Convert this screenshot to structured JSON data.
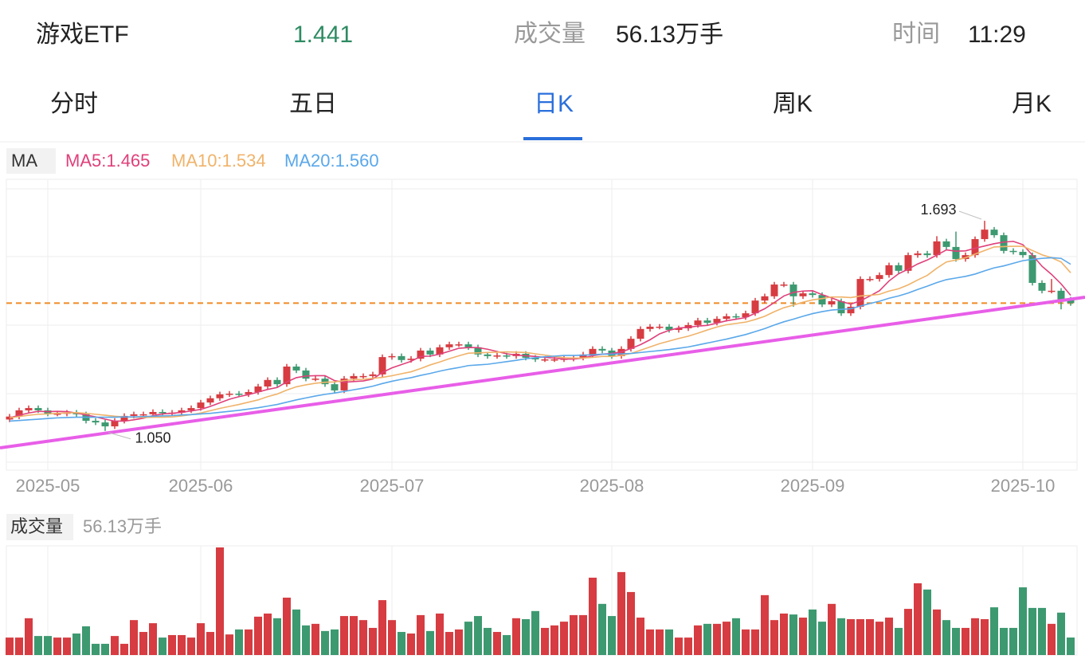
{
  "header": {
    "name": "游戏ETF",
    "price": 1.441,
    "volume_label": "成交量",
    "volume": "56.13万手",
    "time_label": "时间",
    "time": "11:29"
  },
  "tabs": {
    "items": [
      "分时",
      "五日",
      "日K",
      "周K",
      "月K"
    ],
    "active": 2
  },
  "chart_data": {
    "type": "candlestick",
    "ma_title": "MA",
    "volume_title": "成交量",
    "volume_label": "56.13万手",
    "up_color": "#d63c41",
    "down_color": "#3d9970",
    "ylim": [
      0.93,
      1.82
    ],
    "volume_ylim": [
      0,
      350
    ],
    "xticks": [
      {
        "value": 4,
        "label": "2025-05"
      },
      {
        "value": 20,
        "label": "2025-06"
      },
      {
        "value": 40,
        "label": "2025-07"
      },
      {
        "value": 63,
        "label": "2025-08"
      },
      {
        "value": 84,
        "label": "2025-09"
      },
      {
        "value": 106,
        "label": "2025-10"
      }
    ],
    "annotations": {
      "max": "1.693",
      "min": "1.050"
    },
    "open": [
      1.085,
      1.094,
      1.113,
      1.12,
      1.113,
      1.103,
      1.103,
      1.106,
      1.101,
      1.081,
      1.076,
      1.064,
      1.081,
      1.096,
      1.101,
      1.101,
      1.108,
      1.106,
      1.106,
      1.113,
      1.12,
      1.137,
      1.15,
      1.162,
      1.164,
      1.162,
      1.169,
      1.186,
      1.206,
      1.193,
      1.247,
      1.235,
      1.21,
      1.21,
      1.193,
      1.174,
      1.21,
      1.218,
      1.218,
      1.223,
      1.276,
      1.279,
      1.267,
      1.271,
      1.296,
      1.284,
      1.306,
      1.315,
      1.315,
      1.306,
      1.284,
      1.279,
      1.281,
      1.279,
      1.286,
      1.274,
      1.269,
      1.269,
      1.269,
      1.271,
      1.274,
      1.284,
      1.301,
      1.296,
      1.279,
      1.301,
      1.332,
      1.362,
      1.369,
      1.369,
      1.359,
      1.364,
      1.374,
      1.388,
      1.381,
      1.393,
      1.401,
      1.398,
      1.41,
      1.449,
      1.462,
      1.498,
      1.498,
      1.462,
      1.471,
      1.466,
      1.437,
      1.447,
      1.41,
      1.43,
      1.515,
      1.515,
      1.527,
      1.557,
      1.54,
      1.588,
      1.593,
      1.588,
      1.63,
      1.613,
      1.576,
      1.588,
      1.637,
      1.666,
      1.649,
      1.601,
      1.598,
      1.588,
      1.503,
      1.479,
      1.479,
      1.452
    ],
    "close": [
      1.094,
      1.113,
      1.12,
      1.113,
      1.103,
      1.103,
      1.106,
      1.101,
      1.081,
      1.076,
      1.064,
      1.081,
      1.096,
      1.101,
      1.101,
      1.108,
      1.106,
      1.106,
      1.113,
      1.12,
      1.137,
      1.15,
      1.162,
      1.164,
      1.162,
      1.169,
      1.186,
      1.206,
      1.193,
      1.247,
      1.235,
      1.21,
      1.21,
      1.193,
      1.174,
      1.21,
      1.218,
      1.218,
      1.223,
      1.276,
      1.279,
      1.267,
      1.271,
      1.296,
      1.284,
      1.306,
      1.315,
      1.315,
      1.306,
      1.284,
      1.279,
      1.281,
      1.279,
      1.286,
      1.274,
      1.269,
      1.269,
      1.269,
      1.271,
      1.274,
      1.284,
      1.301,
      1.296,
      1.279,
      1.301,
      1.332,
      1.362,
      1.369,
      1.369,
      1.359,
      1.364,
      1.374,
      1.388,
      1.381,
      1.393,
      1.401,
      1.398,
      1.41,
      1.449,
      1.462,
      1.498,
      1.498,
      1.462,
      1.471,
      1.466,
      1.437,
      1.447,
      1.41,
      1.43,
      1.515,
      1.515,
      1.527,
      1.557,
      1.54,
      1.588,
      1.593,
      1.588,
      1.63,
      1.613,
      1.576,
      1.588,
      1.637,
      1.666,
      1.649,
      1.601,
      1.598,
      1.588,
      1.503,
      1.479,
      1.479,
      1.452,
      1.441
    ],
    "high": [
      1.102,
      1.121,
      1.128,
      1.128,
      1.121,
      1.111,
      1.114,
      1.114,
      1.109,
      1.089,
      1.084,
      1.089,
      1.104,
      1.109,
      1.109,
      1.116,
      1.116,
      1.114,
      1.121,
      1.128,
      1.145,
      1.158,
      1.17,
      1.172,
      1.172,
      1.177,
      1.194,
      1.214,
      1.214,
      1.255,
      1.255,
      1.243,
      1.218,
      1.218,
      1.201,
      1.218,
      1.226,
      1.226,
      1.231,
      1.284,
      1.287,
      1.287,
      1.279,
      1.304,
      1.304,
      1.314,
      1.323,
      1.323,
      1.323,
      1.314,
      1.292,
      1.289,
      1.289,
      1.294,
      1.294,
      1.282,
      1.277,
      1.277,
      1.279,
      1.282,
      1.292,
      1.309,
      1.309,
      1.304,
      1.309,
      1.34,
      1.37,
      1.377,
      1.377,
      1.377,
      1.372,
      1.382,
      1.396,
      1.396,
      1.401,
      1.409,
      1.409,
      1.418,
      1.457,
      1.47,
      1.506,
      1.506,
      1.506,
      1.479,
      1.479,
      1.474,
      1.455,
      1.455,
      1.438,
      1.523,
      1.523,
      1.535,
      1.565,
      1.565,
      1.596,
      1.601,
      1.601,
      1.646,
      1.638,
      1.66,
      1.596,
      1.645,
      1.693,
      1.674,
      1.657,
      1.609,
      1.606,
      1.596,
      1.511,
      1.515,
      1.487,
      1.46
    ],
    "low": [
      1.077,
      1.086,
      1.105,
      1.105,
      1.095,
      1.095,
      1.095,
      1.093,
      1.073,
      1.068,
      1.05,
      1.056,
      1.073,
      1.088,
      1.093,
      1.093,
      1.098,
      1.098,
      1.098,
      1.105,
      1.112,
      1.129,
      1.142,
      1.154,
      1.154,
      1.154,
      1.161,
      1.178,
      1.185,
      1.185,
      1.227,
      1.202,
      1.202,
      1.185,
      1.166,
      1.166,
      1.202,
      1.21,
      1.21,
      1.215,
      1.268,
      1.259,
      1.259,
      1.263,
      1.276,
      1.276,
      1.298,
      1.307,
      1.298,
      1.276,
      1.271,
      1.271,
      1.271,
      1.271,
      1.266,
      1.261,
      1.261,
      1.261,
      1.261,
      1.263,
      1.266,
      1.276,
      1.288,
      1.271,
      1.271,
      1.293,
      1.324,
      1.354,
      1.361,
      1.351,
      1.351,
      1.356,
      1.366,
      1.373,
      1.373,
      1.385,
      1.39,
      1.39,
      1.402,
      1.441,
      1.454,
      1.49,
      1.43,
      1.454,
      1.458,
      1.429,
      1.429,
      1.402,
      1.402,
      1.422,
      1.507,
      1.507,
      1.519,
      1.532,
      1.532,
      1.58,
      1.58,
      1.58,
      1.605,
      1.568,
      1.568,
      1.58,
      1.629,
      1.641,
      1.593,
      1.59,
      1.58,
      1.495,
      1.471,
      1.471,
      1.422,
      1.433
    ],
    "volume": [
      56,
      56,
      118,
      61,
      61,
      56,
      56,
      69,
      92,
      36,
      36,
      61,
      36,
      112,
      74,
      102,
      56,
      64,
      64,
      56,
      102,
      74,
      345,
      66,
      82,
      82,
      123,
      133,
      118,
      184,
      146,
      95,
      100,
      77,
      82,
      125,
      125,
      112,
      87,
      176,
      112,
      74,
      69,
      128,
      77,
      133,
      74,
      82,
      107,
      125,
      87,
      74,
      64,
      118,
      115,
      141,
      87,
      95,
      107,
      128,
      128,
      248,
      164,
      125,
      266,
      202,
      120,
      82,
      82,
      82,
      56,
      56,
      95,
      100,
      100,
      107,
      118,
      82,
      82,
      192,
      112,
      133,
      130,
      120,
      146,
      107,
      164,
      118,
      115,
      115,
      115,
      107,
      120,
      87,
      148,
      230,
      210,
      146,
      112,
      87,
      87,
      118,
      115,
      153,
      87,
      87,
      217,
      151,
      151,
      100,
      136,
      56.13
    ],
    "ma": [
      {
        "name": "MA5:1.465",
        "color": "#e0407a",
        "values": [
          1.09,
          1.098,
          1.105,
          1.11,
          1.109,
          1.11,
          1.109,
          1.105,
          1.099,
          1.093,
          1.086,
          1.08,
          1.08,
          1.084,
          1.089,
          1.097,
          1.102,
          1.104,
          1.107,
          1.111,
          1.116,
          1.125,
          1.136,
          1.147,
          1.155,
          1.161,
          1.169,
          1.177,
          1.183,
          1.2,
          1.213,
          1.218,
          1.219,
          1.219,
          1.204,
          1.199,
          1.201,
          1.203,
          1.209,
          1.229,
          1.243,
          1.253,
          1.263,
          1.278,
          1.279,
          1.285,
          1.294,
          1.303,
          1.305,
          1.305,
          1.3,
          1.293,
          1.286,
          1.282,
          1.28,
          1.278,
          1.275,
          1.273,
          1.27,
          1.27,
          1.273,
          1.28,
          1.285,
          1.287,
          1.292,
          1.302,
          1.314,
          1.329,
          1.347,
          1.358,
          1.365,
          1.367,
          1.371,
          1.373,
          1.38,
          1.387,
          1.392,
          1.397,
          1.41,
          1.424,
          1.443,
          1.463,
          1.474,
          1.478,
          1.479,
          1.467,
          1.457,
          1.446,
          1.438,
          1.448,
          1.463,
          1.479,
          1.509,
          1.531,
          1.545,
          1.561,
          1.573,
          1.588,
          1.604,
          1.6,
          1.601,
          1.609,
          1.616,
          1.623,
          1.628,
          1.63,
          1.62,
          1.588,
          1.554,
          1.529,
          1.5,
          1.465
        ]
      },
      {
        "name": "MA10:1.534",
        "color": "#f0b36a",
        "values": [
          1.09,
          1.094,
          1.098,
          1.101,
          1.102,
          1.104,
          1.105,
          1.106,
          1.104,
          1.101,
          1.098,
          1.095,
          1.093,
          1.092,
          1.091,
          1.092,
          1.092,
          1.093,
          1.096,
          1.1,
          1.105,
          1.112,
          1.119,
          1.125,
          1.131,
          1.138,
          1.145,
          1.155,
          1.163,
          1.175,
          1.185,
          1.191,
          1.196,
          1.199,
          1.2,
          1.204,
          1.207,
          1.208,
          1.211,
          1.214,
          1.219,
          1.225,
          1.231,
          1.241,
          1.252,
          1.261,
          1.271,
          1.28,
          1.288,
          1.289,
          1.29,
          1.291,
          1.292,
          1.291,
          1.29,
          1.286,
          1.282,
          1.278,
          1.274,
          1.273,
          1.273,
          1.275,
          1.278,
          1.278,
          1.281,
          1.287,
          1.297,
          1.307,
          1.317,
          1.325,
          1.333,
          1.34,
          1.349,
          1.359,
          1.368,
          1.375,
          1.379,
          1.383,
          1.391,
          1.401,
          1.415,
          1.427,
          1.435,
          1.444,
          1.451,
          1.455,
          1.46,
          1.46,
          1.458,
          1.463,
          1.465,
          1.468,
          1.478,
          1.485,
          1.497,
          1.512,
          1.526,
          1.548,
          1.567,
          1.573,
          1.58,
          1.591,
          1.602,
          1.613,
          1.614,
          1.615,
          1.615,
          1.602,
          1.589,
          1.58,
          1.567,
          1.534
        ]
      },
      {
        "name": "MA20:1.560",
        "color": "#5aa8ea",
        "values": [
          1.08,
          1.082,
          1.084,
          1.086,
          1.088,
          1.09,
          1.091,
          1.092,
          1.092,
          1.092,
          1.092,
          1.092,
          1.093,
          1.093,
          1.094,
          1.095,
          1.096,
          1.097,
          1.099,
          1.1,
          1.102,
          1.104,
          1.107,
          1.11,
          1.113,
          1.117,
          1.121,
          1.126,
          1.131,
          1.138,
          1.145,
          1.151,
          1.157,
          1.162,
          1.166,
          1.171,
          1.176,
          1.181,
          1.187,
          1.195,
          1.202,
          1.208,
          1.213,
          1.22,
          1.226,
          1.233,
          1.239,
          1.244,
          1.25,
          1.252,
          1.254,
          1.258,
          1.262,
          1.266,
          1.271,
          1.274,
          1.277,
          1.279,
          1.281,
          1.281,
          1.282,
          1.283,
          1.285,
          1.285,
          1.286,
          1.287,
          1.29,
          1.293,
          1.296,
          1.299,
          1.303,
          1.307,
          1.313,
          1.319,
          1.325,
          1.331,
          1.338,
          1.345,
          1.354,
          1.363,
          1.374,
          1.384,
          1.392,
          1.401,
          1.409,
          1.415,
          1.42,
          1.422,
          1.424,
          1.432,
          1.44,
          1.447,
          1.456,
          1.463,
          1.472,
          1.483,
          1.493,
          1.504,
          1.513,
          1.518,
          1.523,
          1.53,
          1.54,
          1.549,
          1.555,
          1.563,
          1.571,
          1.575,
          1.578,
          1.58,
          1.578,
          1.56
        ]
      }
    ]
  }
}
